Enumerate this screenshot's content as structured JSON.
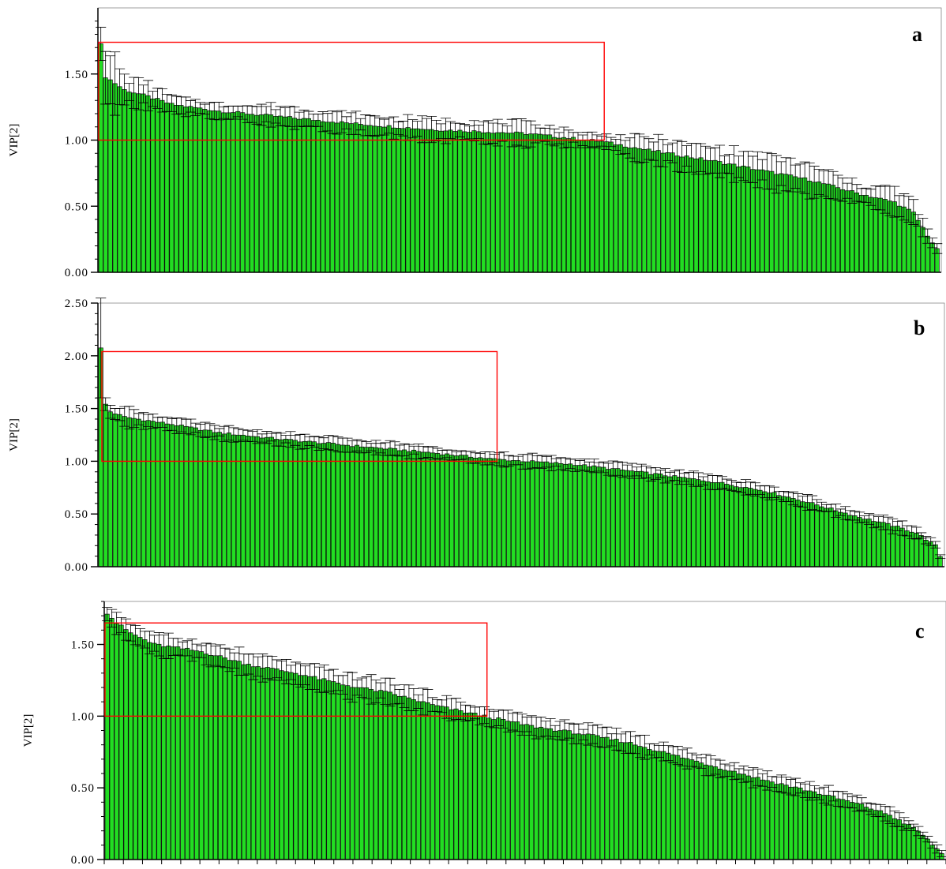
{
  "figure": {
    "panels": [
      "a",
      "b",
      "c"
    ]
  },
  "chart_data": [
    {
      "type": "bar",
      "panel_label": "a",
      "ylabel": "VIP[2]",
      "ylim": [
        0,
        2.0
      ],
      "yticks": [
        "0.00",
        "0.50",
        "1.00",
        "1.50"
      ],
      "ytick_values": [
        0,
        0.5,
        1.0,
        1.5
      ],
      "bar_count": 178,
      "bar_color": "#22dd22",
      "error_bar_color": "#000000",
      "grid": false,
      "highlight_box": {
        "color": "#ff0000",
        "first_bar": 1,
        "last_bar": 106,
        "y_from": 1.0,
        "y_to": 1.74
      },
      "profile": [
        [
          0,
          1.72,
          0.16
        ],
        [
          1,
          1.48,
          0.14
        ],
        [
          3,
          1.43,
          0.18
        ],
        [
          5,
          1.38,
          0.09
        ],
        [
          10,
          1.33,
          0.08
        ],
        [
          15,
          1.27,
          0.05
        ],
        [
          25,
          1.22,
          0.05
        ],
        [
          40,
          1.17,
          0.07
        ],
        [
          55,
          1.12,
          0.06
        ],
        [
          70,
          1.08,
          0.07
        ],
        [
          90,
          1.05,
          0.07
        ],
        [
          106,
          0.99,
          0.04
        ],
        [
          115,
          0.93,
          0.08
        ],
        [
          130,
          0.84,
          0.09
        ],
        [
          140,
          0.77,
          0.1
        ],
        [
          150,
          0.7,
          0.1
        ],
        [
          160,
          0.6,
          0.06
        ],
        [
          168,
          0.53,
          0.09
        ],
        [
          172,
          0.45,
          0.07
        ],
        [
          175,
          0.28,
          0.04
        ],
        [
          177,
          0.17,
          0.03
        ]
      ]
    },
    {
      "type": "bar",
      "panel_label": "b",
      "ylabel": "VIP[2]",
      "ylim": [
        0,
        2.5
      ],
      "yticks": [
        "0.00",
        "0.50",
        "1.00",
        "1.50",
        "2.00",
        "2.50"
      ],
      "ytick_values": [
        0,
        0.5,
        1.0,
        1.5,
        2.0,
        2.5
      ],
      "bar_count": 178,
      "bar_color": "#22dd22",
      "error_bar_color": "#000000",
      "grid": false,
      "highlight_box": {
        "color": "#ff0000",
        "first_bar": 1,
        "last_bar": 83,
        "y_from": 1.0,
        "y_to": 2.04
      },
      "profile": [
        [
          0,
          2.07,
          0.32
        ],
        [
          1,
          1.54,
          0.07
        ],
        [
          2,
          1.47,
          0.07
        ],
        [
          5,
          1.42,
          0.08
        ],
        [
          15,
          1.35,
          0.05
        ],
        [
          25,
          1.27,
          0.05
        ],
        [
          40,
          1.2,
          0.05
        ],
        [
          55,
          1.14,
          0.05
        ],
        [
          70,
          1.08,
          0.05
        ],
        [
          83,
          1.02,
          0.05
        ],
        [
          100,
          0.97,
          0.05
        ],
        [
          115,
          0.89,
          0.05
        ],
        [
          130,
          0.8,
          0.05
        ],
        [
          140,
          0.72,
          0.05
        ],
        [
          150,
          0.6,
          0.05
        ],
        [
          160,
          0.47,
          0.04
        ],
        [
          167,
          0.39,
          0.05
        ],
        [
          172,
          0.32,
          0.04
        ],
        [
          176,
          0.2,
          0.03
        ],
        [
          177,
          0.1,
          0.02
        ]
      ]
    },
    {
      "type": "bar",
      "panel_label": "c",
      "ylabel": "VIP[2]",
      "ylim": [
        0,
        1.8
      ],
      "yticks": [
        "0.00",
        "0.50",
        "1.00",
        "1.50"
      ],
      "ytick_values": [
        0,
        0.5,
        1.0,
        1.5
      ],
      "bar_count": 178,
      "bar_color": "#22dd22",
      "error_bar_color": "#000000",
      "grid": false,
      "highlight_box": {
        "color": "#ff0000",
        "first_bar": 0,
        "last_bar": 80,
        "y_from": 1.0,
        "y_to": 1.65
      },
      "profile": [
        [
          0,
          1.72,
          0.05
        ],
        [
          2,
          1.65,
          0.07
        ],
        [
          5,
          1.58,
          0.06
        ],
        [
          10,
          1.5,
          0.06
        ],
        [
          20,
          1.45,
          0.06
        ],
        [
          30,
          1.36,
          0.07
        ],
        [
          40,
          1.3,
          0.06
        ],
        [
          50,
          1.22,
          0.07
        ],
        [
          60,
          1.16,
          0.07
        ],
        [
          70,
          1.07,
          0.06
        ],
        [
          80,
          1.0,
          0.05
        ],
        [
          90,
          0.93,
          0.06
        ],
        [
          100,
          0.88,
          0.05
        ],
        [
          110,
          0.82,
          0.06
        ],
        [
          120,
          0.73,
          0.05
        ],
        [
          130,
          0.64,
          0.05
        ],
        [
          140,
          0.55,
          0.05
        ],
        [
          150,
          0.47,
          0.05
        ],
        [
          160,
          0.38,
          0.04
        ],
        [
          166,
          0.31,
          0.04
        ],
        [
          172,
          0.2,
          0.03
        ],
        [
          177,
          0.04,
          0.02
        ]
      ]
    }
  ]
}
